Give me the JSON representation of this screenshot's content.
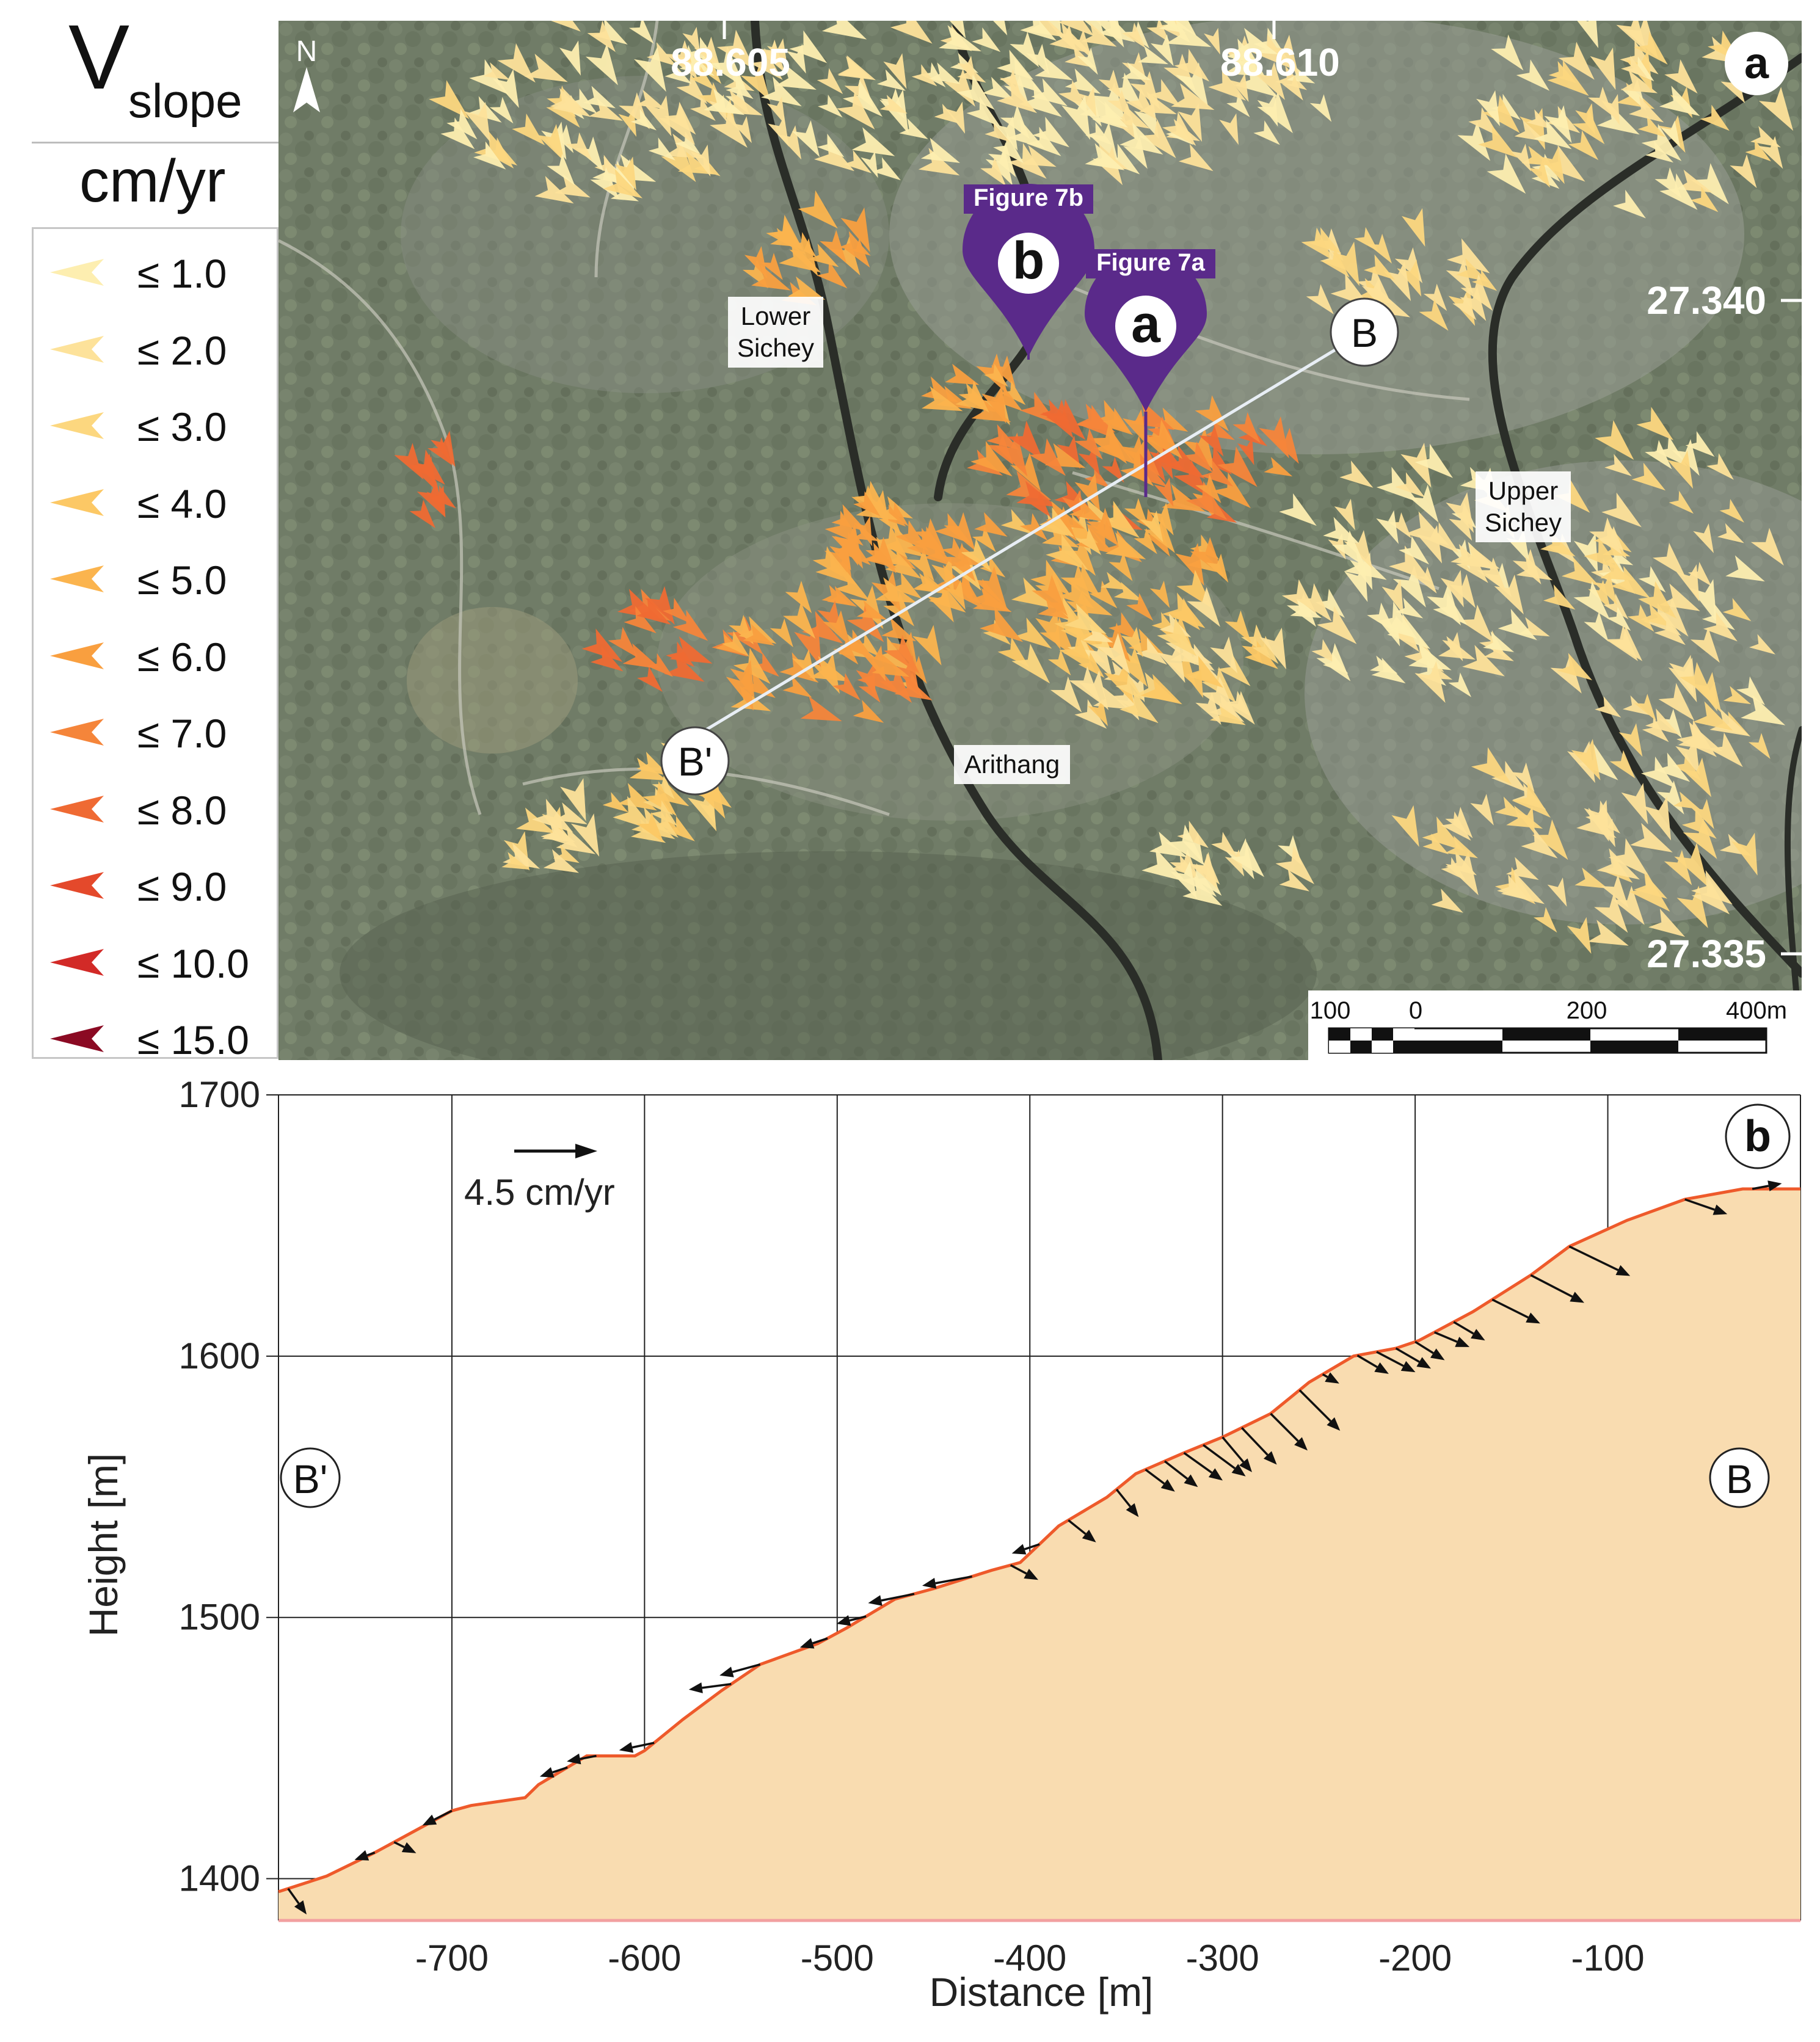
{
  "legend": {
    "symbol": "V",
    "subscript": "slope",
    "unit": "cm/yr",
    "items": [
      {
        "label": "≤ 1.0",
        "color": "#fdeeb0"
      },
      {
        "label": "≤ 2.0",
        "color": "#fde29a"
      },
      {
        "label": "≤ 3.0",
        "color": "#fcd77f"
      },
      {
        "label": "≤ 4.0",
        "color": "#fcc865"
      },
      {
        "label": "≤ 5.0",
        "color": "#fbb44e"
      },
      {
        "label": "≤ 6.0",
        "color": "#f99f3f"
      },
      {
        "label": "≤ 7.0",
        "color": "#f5853a"
      },
      {
        "label": "≤ 8.0",
        "color": "#ef6a33"
      },
      {
        "label": "≤ 9.0",
        "color": "#e4492b"
      },
      {
        "label": "≤ 10.0",
        "color": "#d22a27"
      },
      {
        "label": "≤ 15.0",
        "color": "#8b0a23"
      }
    ]
  },
  "map": {
    "panel_label": "a",
    "north_label": "N",
    "longitude_labels": [
      "88.605",
      "88.610"
    ],
    "latitude_labels": [
      "27.340",
      "27.335"
    ],
    "places": [
      "Lower",
      "Sichey",
      "Upper",
      "Sichey",
      "Arithang"
    ],
    "markers": [
      {
        "letter": "b",
        "caption": "Figure 7b"
      },
      {
        "letter": "a",
        "caption": "Figure 7a"
      }
    ],
    "profile_endpoints": {
      "start": "B",
      "end": "B'"
    },
    "scale_bar": {
      "labels": [
        "100",
        "0",
        "200",
        "400m"
      ]
    }
  },
  "chart_data": {
    "type": "area",
    "title": "",
    "panel_label": "b",
    "xlabel": "Distance [m]",
    "ylabel": "Height [m]",
    "xlim": [
      -790,
      0
    ],
    "ylim": [
      1384,
      1700
    ],
    "xticks": [
      -700,
      -600,
      -500,
      -400,
      -300,
      -200,
      -100
    ],
    "xtick_labels": [
      "-700",
      "-600",
      "-500",
      "-400",
      "-300",
      "-200",
      "-100"
    ],
    "yticks": [
      1400,
      1500,
      1600,
      1700
    ],
    "ytick_labels": [
      "1400",
      "1500",
      "1600",
      "1700"
    ],
    "grid": true,
    "endpoint_labels": {
      "left": "B'",
      "right": "B"
    },
    "reference_vector": {
      "label": "4.5 cm/yr",
      "magnitude_cm_yr": 4.5
    },
    "profile": {
      "x": [
        -790,
        -765,
        -740,
        -715,
        -700,
        -690,
        -662,
        -655,
        -630,
        -605,
        -600,
        -580,
        -560,
        -540,
        -510,
        -495,
        -470,
        -450,
        -420,
        -405,
        -385,
        -360,
        -345,
        -320,
        -300,
        -275,
        -255,
        -232,
        -210,
        -198,
        -170,
        -140,
        -120,
        -90,
        -60,
        -30,
        -10,
        0
      ],
      "y": [
        1395,
        1401,
        1410,
        1420,
        1426,
        1428,
        1431,
        1436,
        1447,
        1447,
        1449,
        1461,
        1472,
        1482,
        1490,
        1496,
        1507,
        1511,
        1518,
        1521,
        1535,
        1546,
        1555,
        1563,
        1569,
        1578,
        1590,
        1600,
        1603,
        1606,
        1617,
        1631,
        1642,
        1652,
        1660,
        1664,
        1664,
        1664
      ]
    },
    "vectors": {
      "x": [
        -785,
        -740,
        -730,
        -700,
        -640,
        -625,
        -595,
        -555,
        -540,
        -505,
        -485,
        -460,
        -430,
        -410,
        -395,
        -380,
        -355,
        -340,
        -330,
        -320,
        -310,
        -300,
        -290,
        -275,
        -260,
        -248,
        -230,
        -220,
        -210,
        -200,
        -190,
        -180,
        -160,
        -140,
        -120,
        -60,
        -25
      ],
      "vx": [
        1.0,
        -1.1,
        1.2,
        -1.6,
        -1.5,
        -1.6,
        -1.9,
        -2.3,
        -2.2,
        -1.5,
        -1.6,
        -2.5,
        -2.7,
        1.5,
        -1.5,
        1.5,
        1.2,
        1.6,
        1.8,
        2.1,
        2.3,
        1.6,
        1.9,
        2.0,
        2.2,
        0.9,
        1.7,
        2.1,
        1.9,
        1.6,
        1.9,
        1.7,
        2.6,
        2.9,
        3.3,
        2.3,
        1.6
      ],
      "vy": [
        -1.4,
        -0.4,
        -0.6,
        -0.8,
        -0.5,
        -0.3,
        -0.4,
        -0.3,
        -0.6,
        -0.5,
        -0.4,
        -0.5,
        -0.5,
        -0.8,
        -0.5,
        -1.2,
        -1.5,
        -1.2,
        -1.4,
        -1.5,
        -1.7,
        -1.9,
        -2.0,
        -2.0,
        -2.2,
        -0.5,
        -1.0,
        -1.1,
        -1.1,
        -1.0,
        -0.8,
        -1.0,
        -1.3,
        -1.5,
        -1.6,
        -0.8,
        0.3
      ]
    }
  }
}
